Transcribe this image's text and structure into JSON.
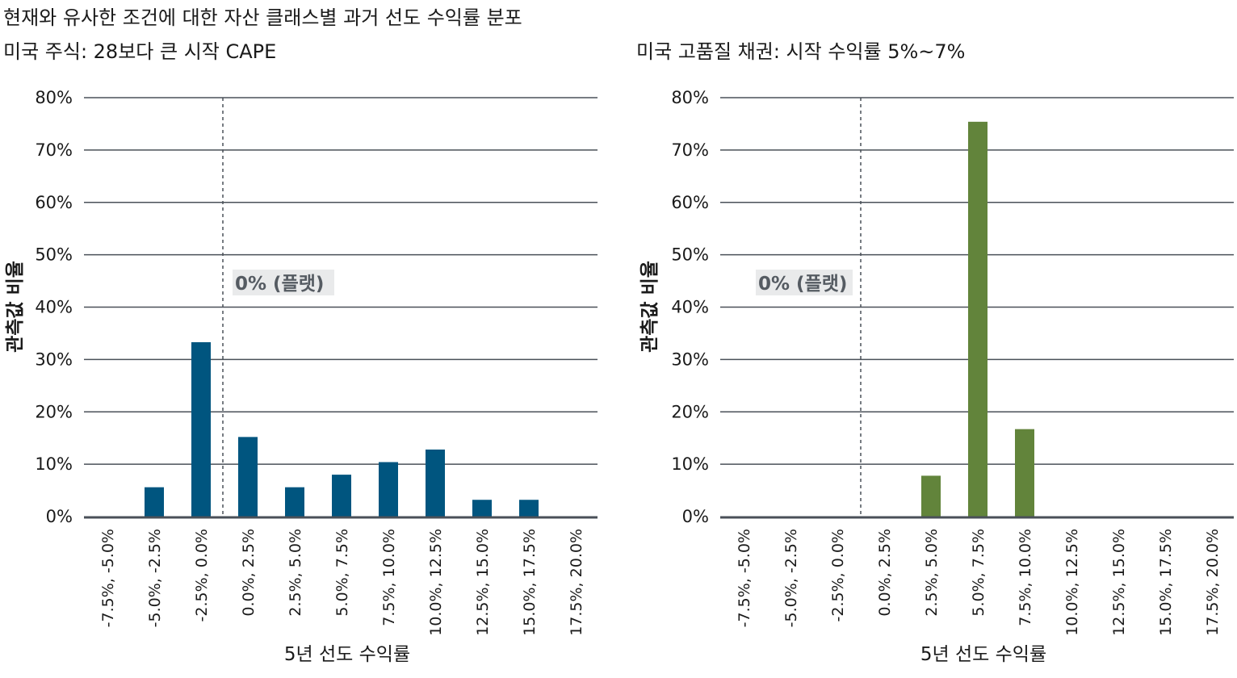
{
  "title": "현재와 유사한 조건에 대한 자산 클래스별 과거 선도 수익률 분포",
  "chart_data": [
    {
      "type": "bar",
      "subtitle": "미국 주식: 28보다 큰 시작 CAPE",
      "categories": [
        "-7.5%, -5.0%",
        "-5.0%, -2.5%",
        "-2.5%, 0.0%",
        "0.0%, 2.5%",
        "2.5%, 5.0%",
        "5.0%, 7.5%",
        "7.5%, 10.0%",
        "10.0%, 12.5%",
        "12.5%, 15.0%",
        "15.0%, 17.5%",
        "17.5%, 20.0%"
      ],
      "values": [
        0,
        5.6,
        33.3,
        15.2,
        5.6,
        8.0,
        10.4,
        12.8,
        3.2,
        3.2,
        0
      ],
      "xlabel": "5년 선도 수익률",
      "ylabel": "관측값 비율",
      "ylim": [
        0,
        80
      ],
      "yticks": [
        "0%",
        "10%",
        "20%",
        "30%",
        "40%",
        "50%",
        "60%",
        "70%",
        "80%"
      ],
      "color": "#00557f",
      "annotation": "0% (플랫)",
      "grid": true
    },
    {
      "type": "bar",
      "subtitle": "미국 고품질 채권: 시작 수익률 5%~7%",
      "categories": [
        "-7.5%, -5.0%",
        "-5.0%, -2.5%",
        "-2.5%, 0.0%",
        "0.0%, 2.5%",
        "2.5%, 5.0%",
        "5.0%, 7.5%",
        "7.5%, 10.0%",
        "10.0%, 12.5%",
        "12.5%, 15.0%",
        "15.0%, 17.5%",
        "17.5%, 20.0%"
      ],
      "values": [
        0,
        0,
        0,
        0,
        7.8,
        75.4,
        16.7,
        0,
        0,
        0,
        0
      ],
      "xlabel": "5년 선도 수익률",
      "ylabel": "관측값 비율",
      "ylim": [
        0,
        80
      ],
      "yticks": [
        "0%",
        "10%",
        "20%",
        "30%",
        "40%",
        "50%",
        "60%",
        "70%",
        "80%"
      ],
      "color": "#62843b",
      "annotation": "0% (플랫)",
      "grid": true
    }
  ]
}
